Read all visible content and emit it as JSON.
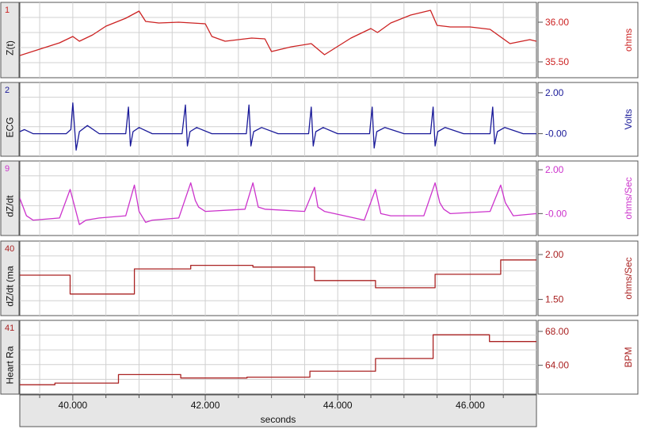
{
  "x_axis": {
    "label": "seconds",
    "range": [
      39.2,
      47.0
    ],
    "ticks": [
      {
        "value": 40.0,
        "label": "40.000"
      },
      {
        "value": 42.0,
        "label": "42.000"
      },
      {
        "value": 44.0,
        "label": "44.000"
      },
      {
        "value": 46.0,
        "label": "46.000"
      }
    ]
  },
  "chart_data": [
    {
      "type": "line",
      "channel": "1",
      "title": "Z(t)",
      "unit": "ohms",
      "color": "#cc2222",
      "ylim": [
        35.3,
        36.25
      ],
      "ticks": [
        {
          "value": 36.0,
          "label": "36.00"
        },
        {
          "value": 35.5,
          "label": "35.50"
        }
      ],
      "x": [
        39.2,
        39.5,
        39.8,
        40.0,
        40.1,
        40.3,
        40.5,
        40.8,
        41.0,
        41.1,
        41.3,
        41.6,
        42.0,
        42.1,
        42.3,
        42.7,
        42.9,
        43.0,
        43.3,
        43.6,
        43.8,
        44.2,
        44.5,
        44.6,
        44.8,
        45.1,
        45.4,
        45.5,
        45.7,
        46.0,
        46.3,
        46.6,
        46.9,
        47.0
      ],
      "values": [
        35.58,
        35.66,
        35.74,
        35.82,
        35.76,
        35.84,
        35.95,
        36.05,
        36.14,
        36.01,
        35.99,
        36.0,
        35.98,
        35.82,
        35.76,
        35.8,
        35.79,
        35.63,
        35.69,
        35.73,
        35.59,
        35.8,
        35.92,
        35.87,
        35.99,
        36.09,
        36.15,
        35.96,
        35.94,
        35.94,
        35.91,
        35.73,
        35.78,
        35.76
      ]
    },
    {
      "type": "line",
      "channel": "2",
      "title": "ECG",
      "unit": "Volts",
      "color": "#1a1a99",
      "ylim": [
        -1.1,
        2.5
      ],
      "ticks": [
        {
          "value": 2.0,
          "label": "2.00"
        },
        {
          "value": 0.0,
          "label": "-0.00"
        }
      ],
      "x": [
        39.2,
        39.27,
        39.4,
        39.7,
        39.9,
        39.97,
        40.0,
        40.05,
        40.1,
        40.22,
        40.4,
        40.8,
        40.84,
        40.87,
        40.91,
        41.0,
        41.2,
        41.65,
        41.7,
        41.73,
        41.77,
        41.87,
        42.1,
        42.62,
        42.66,
        42.69,
        42.73,
        42.85,
        43.1,
        43.56,
        43.6,
        43.63,
        43.67,
        43.78,
        44.0,
        44.48,
        44.52,
        44.55,
        44.59,
        44.71,
        45.0,
        45.4,
        45.44,
        45.47,
        45.51,
        45.62,
        45.9,
        46.3,
        46.34,
        46.37,
        46.41,
        46.52,
        46.8,
        47.0
      ],
      "values": [
        0.1,
        0.2,
        0.0,
        0.0,
        0.0,
        0.2,
        1.5,
        -0.8,
        0.1,
        0.4,
        0.0,
        0.0,
        1.3,
        -0.6,
        0.1,
        0.3,
        0.0,
        0.0,
        1.4,
        -0.6,
        0.1,
        0.3,
        0.0,
        0.0,
        1.4,
        -0.6,
        0.1,
        0.3,
        0.0,
        0.0,
        1.3,
        -0.6,
        0.1,
        0.3,
        0.0,
        0.0,
        1.3,
        -0.7,
        0.1,
        0.3,
        0.0,
        0.0,
        1.3,
        -0.6,
        0.1,
        0.3,
        0.0,
        0.0,
        1.3,
        -0.5,
        0.1,
        0.3,
        0.0,
        0.0
      ]
    },
    {
      "type": "line",
      "channel": "9",
      "title": "dZ/dt",
      "unit": "ohms/Sec",
      "color": "#cc33cc",
      "ylim": [
        -1.0,
        2.4
      ],
      "ticks": [
        {
          "value": 2.0,
          "label": "2.00"
        },
        {
          "value": 0.0,
          "label": "-0.00"
        }
      ],
      "x": [
        39.2,
        39.3,
        39.4,
        39.8,
        39.96,
        40.03,
        40.1,
        40.2,
        40.4,
        40.8,
        40.93,
        41.0,
        41.1,
        41.2,
        41.6,
        41.78,
        41.85,
        41.9,
        42.0,
        42.6,
        42.72,
        42.8,
        42.9,
        43.5,
        43.65,
        43.7,
        43.8,
        44.4,
        44.57,
        44.65,
        44.8,
        45.3,
        45.47,
        45.54,
        45.6,
        45.7,
        46.3,
        46.46,
        46.53,
        46.65,
        47.0
      ],
      "values": [
        0.7,
        -0.1,
        -0.3,
        -0.2,
        1.1,
        0.3,
        -0.5,
        -0.3,
        -0.2,
        -0.1,
        1.3,
        0.1,
        -0.4,
        -0.3,
        -0.2,
        1.4,
        0.6,
        0.3,
        0.1,
        0.2,
        1.4,
        0.3,
        0.2,
        0.1,
        1.2,
        0.3,
        0.1,
        -0.3,
        1.1,
        0.0,
        -0.1,
        -0.1,
        1.4,
        0.5,
        0.2,
        0.0,
        0.1,
        1.3,
        0.5,
        -0.1,
        0.0
      ]
    },
    {
      "type": "step",
      "channel": "40",
      "title": "dZ/dt (ma",
      "unit": "ohms/Sec",
      "color": "#aa2222",
      "ylim": [
        1.32,
        2.15
      ],
      "ticks": [
        {
          "value": 2.0,
          "label": "2.00"
        },
        {
          "value": 1.5,
          "label": "1.50"
        }
      ],
      "x": [
        39.2,
        39.96,
        40.93,
        41.78,
        42.72,
        43.65,
        44.57,
        45.47,
        46.46,
        47.0
      ],
      "values": [
        1.77,
        1.56,
        1.84,
        1.88,
        1.86,
        1.71,
        1.63,
        1.78,
        1.94,
        1.77
      ]
    },
    {
      "type": "step",
      "channel": "41",
      "title": "Heart Ra",
      "unit": "BPM",
      "color": "#aa2222",
      "ylim": [
        60.6,
        69.3
      ],
      "ticks": [
        {
          "value": 68.0,
          "label": "68.00"
        },
        {
          "value": 64.0,
          "label": "64.00"
        }
      ],
      "x": [
        39.2,
        39.73,
        40.69,
        41.63,
        42.63,
        43.58,
        44.57,
        45.44,
        46.29,
        47.0
      ],
      "values": [
        61.7,
        61.9,
        62.9,
        62.5,
        62.6,
        63.3,
        64.8,
        67.6,
        66.8,
        66.8
      ]
    }
  ]
}
